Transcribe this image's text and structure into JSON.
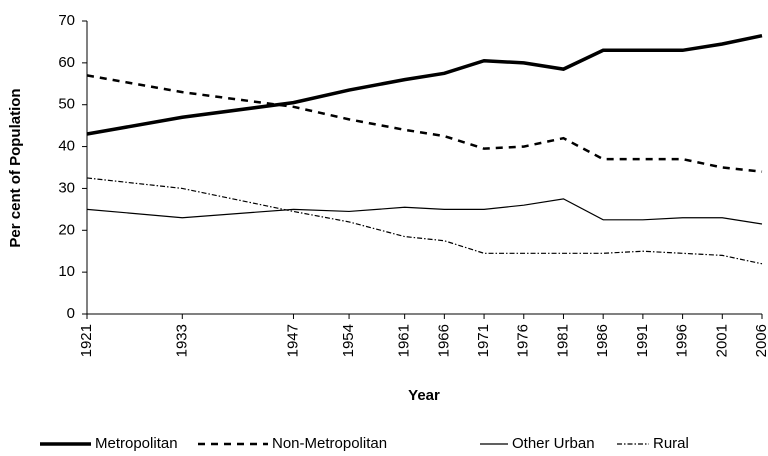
{
  "chart_data": {
    "type": "line",
    "x_label": "Year",
    "y_label": "Per cent of Population",
    "x": [
      1921,
      1933,
      1947,
      1954,
      1961,
      1966,
      1971,
      1976,
      1981,
      1986,
      1991,
      1996,
      2001,
      2006
    ],
    "xlim": [
      1921,
      2006
    ],
    "xticks": [
      1921,
      1933,
      1947,
      1954,
      1961,
      1966,
      1971,
      1976,
      1981,
      1986,
      1991,
      1996,
      2001,
      2006
    ],
    "ylim": [
      0,
      70
    ],
    "yticks": [
      0,
      10,
      20,
      30,
      40,
      50,
      60,
      70
    ],
    "legend": "bottom",
    "series": [
      {
        "name": "Metropolitan",
        "color": "#000000",
        "values": [
          43,
          47,
          50.5,
          53.5,
          56,
          57.5,
          60.5,
          60,
          58.5,
          63,
          63,
          63,
          64.5,
          66.5
        ]
      },
      {
        "name": "Non-Metropolitan",
        "color": "#000000",
        "values": [
          57,
          53,
          49.5,
          46.5,
          44,
          42.5,
          39.5,
          40,
          42,
          37,
          37,
          37,
          35,
          34
        ]
      },
      {
        "name": "Other Urban",
        "color": "#000000",
        "values": [
          25,
          23,
          25,
          24.5,
          25.5,
          25,
          25,
          26,
          27.5,
          22.5,
          22.5,
          23,
          23,
          21.5
        ]
      },
      {
        "name": "Rural",
        "color": "#000000",
        "values": [
          32.5,
          30,
          24.5,
          22,
          18.5,
          17.5,
          14.5,
          14.5,
          14.5,
          14.5,
          15,
          14.5,
          14,
          12
        ]
      }
    ]
  }
}
